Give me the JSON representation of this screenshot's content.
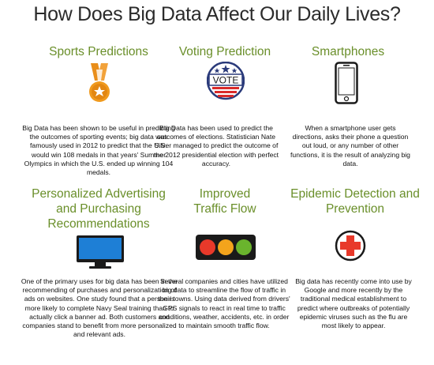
{
  "title": "How Does Big Data Affect Our Daily Lives?",
  "colors": {
    "heading": "#6a8f2a",
    "text": "#111111"
  },
  "cards": [
    {
      "heading": "Sports Predictions",
      "icon": "medal-icon",
      "body": "Big Data has been shown to be useful in predicting the outcomes of sporting events; big data was famously used in 2012 to predict that the U.S. would win 108 medals in that years' Summer Olympics in which the U.S. ended up winning 104 medals."
    },
    {
      "heading": "Voting Prediction",
      "icon": "vote-badge-icon",
      "badge_text": "VOTE",
      "body": "Big Data has been used to predict the outcomes of elections. Statistician Nate Silver managed to predict the outcome of the 2012 presidential election with perfect accuracy."
    },
    {
      "heading": "Smartphones",
      "icon": "smartphone-icon",
      "body": "When a smartphone user gets directions, asks their phone a question out loud, or any number of other functions, it is the result of analyzing big data."
    },
    {
      "heading_line1": "Personalized Advertising",
      "heading_line2": "and Purchasing",
      "heading_line3": "Recommendations",
      "icon": "monitor-icon",
      "body": "One of the primary uses for big data has been in the recommending of purchases and personalization of ads on websites.  One study found that a person is more likely to complete Navy Seal training than to actually click a banner ad.  Both customers and companies stand to benefit from more personalized and relevant ads."
    },
    {
      "heading_line1": "Improved",
      "heading_line2": "Traffic Flow",
      "icon": "traffic-light-icon",
      "body": "Several companies and cities have utilized big data to streamline the flow of traffic in their towns. Using data derived from drivers' GPS signals to react in real time to traffic conditions, weather, accidents, etc. in order to maintain smooth traffic flow."
    },
    {
      "heading_line1": "Epidemic Detection and",
      "heading_line2": "Prevention",
      "icon": "medical-cross-icon",
      "body": "Big data has recently come into use by Google and more recently by the traditional medical establishment to predict where outbreaks of potentially epidemic viruses such as the flu are most likely to appear."
    }
  ]
}
